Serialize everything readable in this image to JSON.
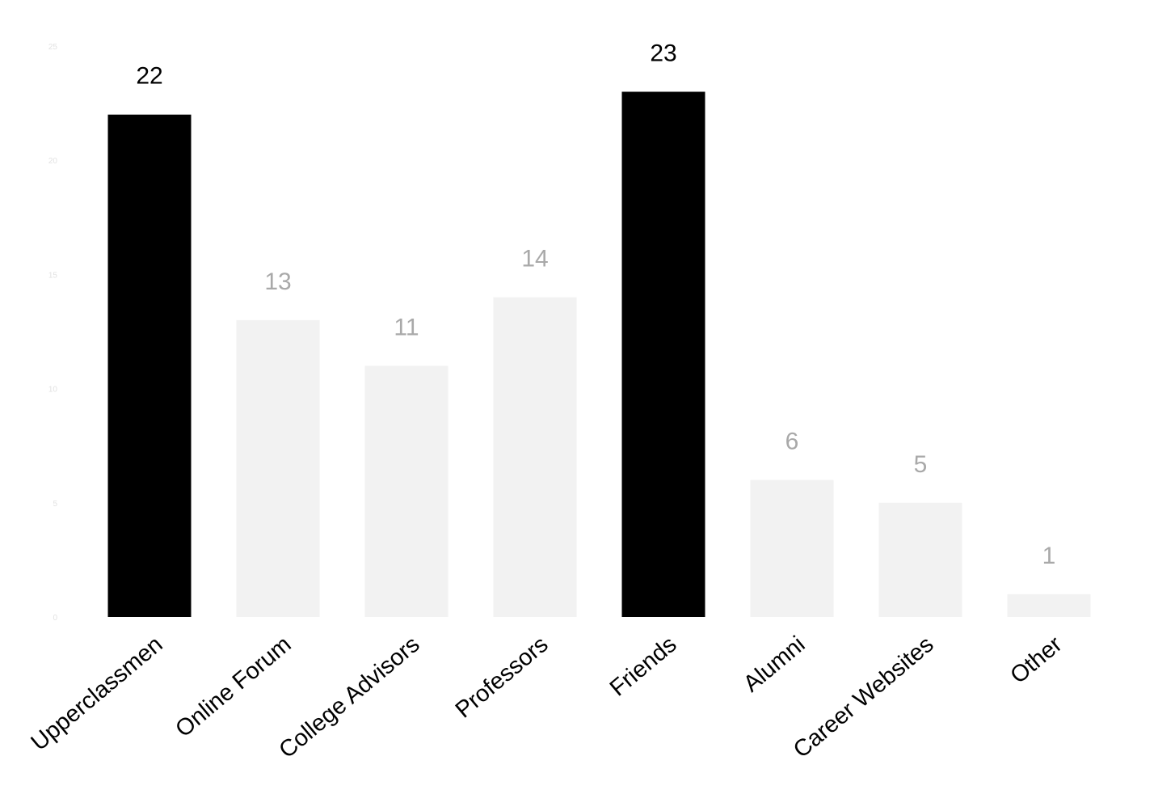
{
  "chart_data": {
    "type": "bar",
    "categories": [
      "Upperclassmen",
      "Online Forum",
      "College Advisors",
      "Professors",
      "Friends",
      "Alumni",
      "Career Websites",
      "Other"
    ],
    "values": [
      22,
      13,
      11,
      14,
      23,
      6,
      5,
      1
    ],
    "highlighted": [
      true,
      false,
      false,
      false,
      true,
      false,
      false,
      false
    ],
    "ylim": [
      0,
      25
    ],
    "yticks": [
      0,
      5,
      10,
      15,
      20,
      25
    ],
    "title": "",
    "xlabel": "",
    "ylabel": "",
    "grid": false,
    "colors": {
      "highlight_bar": "#000000",
      "muted_bar": "#f2f2f2",
      "highlight_label": "#000000",
      "muted_label": "#a9a9a9"
    }
  }
}
